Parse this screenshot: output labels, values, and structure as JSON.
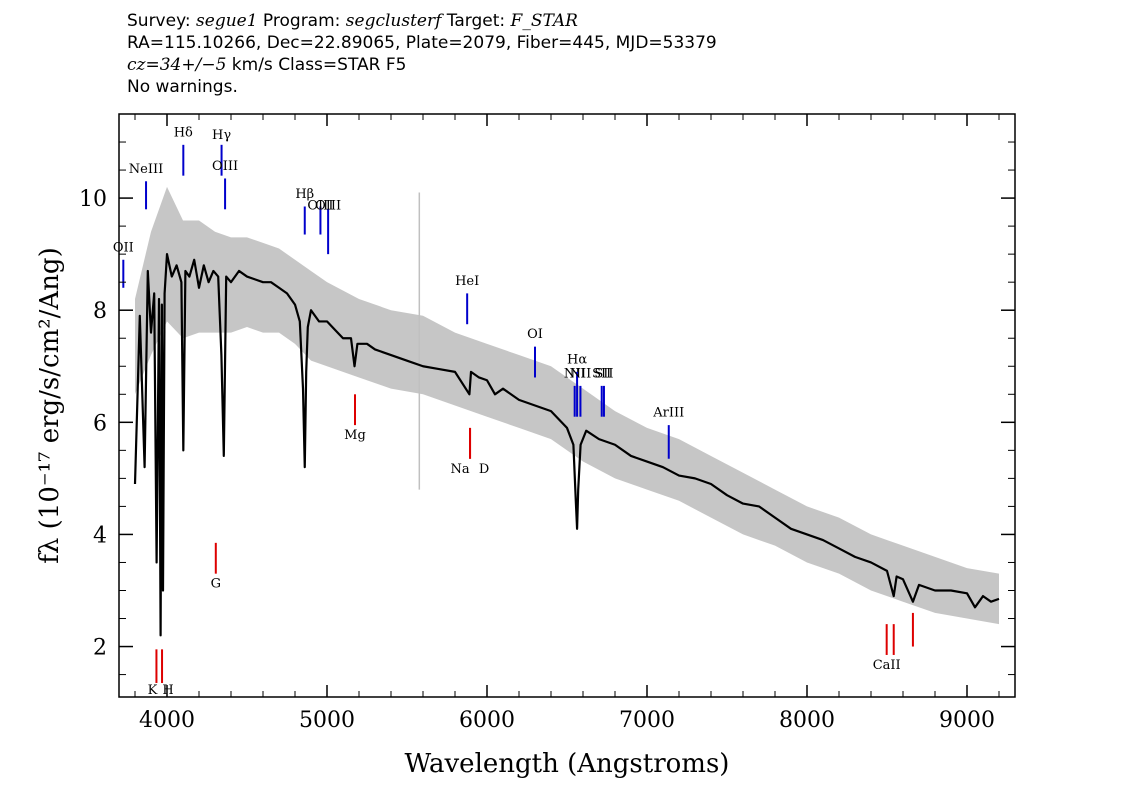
{
  "header": {
    "line1_prefix": "Survey: ",
    "survey": "segue1",
    "program_prefix": " Program: ",
    "program": "segclusterf",
    "target_prefix": " Target: ",
    "target": "F_STAR",
    "line2": "RA=115.10266, Dec=22.89065, Plate=2079, Fiber=445, MJD=53379",
    "line3_cz": "cz=34+/−5",
    "line3_rest": " km/s Class=STAR F5",
    "line4": "No warnings."
  },
  "chart_data": {
    "type": "line",
    "xlabel": "Wavelength (Angstroms)",
    "ylabel": "fλ (10⁻¹⁷ erg/s/cm²/Ang)",
    "xlim": [
      3700,
      9300
    ],
    "ylim": [
      1.1,
      11.5
    ],
    "xticks": [
      4000,
      5000,
      6000,
      7000,
      8000,
      9000
    ],
    "yticks": [
      2,
      4,
      6,
      8,
      10
    ],
    "series": [
      {
        "role": "flux",
        "color": "#000000",
        "x": [
          3800,
          3830,
          3860,
          3880,
          3900,
          3920,
          3935,
          3950,
          3960,
          3968,
          3975,
          3985,
          4000,
          4030,
          4060,
          4090,
          4102,
          4115,
          4140,
          4170,
          4200,
          4230,
          4260,
          4290,
          4320,
          4340,
          4355,
          4370,
          4400,
          4450,
          4500,
          4550,
          4600,
          4650,
          4700,
          4750,
          4800,
          4830,
          4850,
          4861,
          4870,
          4880,
          4900,
          4950,
          5000,
          5050,
          5100,
          5150,
          5172,
          5190,
          5250,
          5300,
          5400,
          5500,
          5600,
          5700,
          5800,
          5890,
          5900,
          5950,
          6000,
          6050,
          6100,
          6200,
          6300,
          6400,
          6500,
          6540,
          6555,
          6563,
          6570,
          6585,
          6620,
          6700,
          6800,
          6900,
          7000,
          7100,
          7200,
          7300,
          7400,
          7500,
          7600,
          7700,
          7800,
          7900,
          8000,
          8100,
          8200,
          8300,
          8400,
          8500,
          8542,
          8560,
          8600,
          8662,
          8700,
          8800,
          8900,
          9000,
          9050,
          9100,
          9150,
          9200
        ],
        "y": [
          4.9,
          7.9,
          5.2,
          8.7,
          7.6,
          8.3,
          3.5,
          8.2,
          2.2,
          8.1,
          3.0,
          8.3,
          9.0,
          8.6,
          8.8,
          8.5,
          5.5,
          8.7,
          8.6,
          8.9,
          8.4,
          8.8,
          8.5,
          8.7,
          8.6,
          7.2,
          5.4,
          8.6,
          8.5,
          8.7,
          8.6,
          8.55,
          8.5,
          8.5,
          8.4,
          8.3,
          8.1,
          7.8,
          6.6,
          5.2,
          6.9,
          7.7,
          8.0,
          7.8,
          7.8,
          7.65,
          7.5,
          7.5,
          7.0,
          7.4,
          7.4,
          7.3,
          7.2,
          7.1,
          7.0,
          6.95,
          6.9,
          6.5,
          6.9,
          6.8,
          6.75,
          6.5,
          6.6,
          6.4,
          6.3,
          6.2,
          5.9,
          5.6,
          4.6,
          4.1,
          4.8,
          5.6,
          5.85,
          5.7,
          5.6,
          5.4,
          5.3,
          5.2,
          5.05,
          5.0,
          4.9,
          4.7,
          4.55,
          4.5,
          4.3,
          4.1,
          4.0,
          3.9,
          3.75,
          3.6,
          3.5,
          3.35,
          2.9,
          3.25,
          3.2,
          2.8,
          3.1,
          3.0,
          3.0,
          2.95,
          2.7,
          2.9,
          2.8,
          2.85
        ]
      },
      {
        "role": "flux-envelope",
        "color": "#c0c0c0",
        "x": [
          3800,
          3900,
          4000,
          4100,
          4200,
          4300,
          4400,
          4500,
          4600,
          4700,
          4800,
          4900,
          5000,
          5200,
          5400,
          5600,
          5800,
          6000,
          6200,
          6400,
          6600,
          6800,
          7000,
          7200,
          7400,
          7600,
          7800,
          8000,
          8200,
          8400,
          8600,
          8800,
          9000,
          9200
        ],
        "upper": [
          8.2,
          9.4,
          10.2,
          9.6,
          9.6,
          9.4,
          9.3,
          9.3,
          9.2,
          9.1,
          8.9,
          8.7,
          8.5,
          8.2,
          8.0,
          7.9,
          7.6,
          7.4,
          7.2,
          7.0,
          6.6,
          6.2,
          5.9,
          5.7,
          5.4,
          5.1,
          4.8,
          4.5,
          4.3,
          4.0,
          3.8,
          3.6,
          3.4,
          3.3
        ],
        "lower": [
          6.5,
          7.2,
          7.8,
          7.5,
          7.6,
          7.6,
          7.6,
          7.7,
          7.6,
          7.6,
          7.4,
          7.1,
          7.0,
          6.8,
          6.6,
          6.5,
          6.3,
          6.1,
          5.9,
          5.7,
          5.3,
          5.0,
          4.8,
          4.6,
          4.3,
          4.0,
          3.8,
          3.5,
          3.3,
          3.0,
          2.8,
          2.6,
          2.5,
          2.4
        ]
      }
    ],
    "emission_lines": [
      {
        "label": "OII",
        "wavelength": 3727,
        "y0": 8.4,
        "y1": 8.9,
        "text_y": 9.05
      },
      {
        "label": "NeIII",
        "wavelength": 3869,
        "y0": 9.8,
        "y1": 10.3,
        "text_y": 10.45
      },
      {
        "label": "Hδ",
        "wavelength": 4102,
        "y0": 10.4,
        "y1": 10.95,
        "text_y": 11.1
      },
      {
        "label": "Hγ",
        "wavelength": 4341,
        "y0": 10.4,
        "y1": 10.95,
        "text_y": 11.05
      },
      {
        "label": "OIII",
        "wavelength": 4363,
        "y0": 9.8,
        "y1": 10.35,
        "text_y": 10.5
      },
      {
        "label": "Hβ",
        "wavelength": 4861,
        "y0": 9.35,
        "y1": 9.85,
        "text_y": 10.0
      },
      {
        "label": "OIII",
        "wavelength": 4959,
        "y0": 9.35,
        "y1": 9.85,
        "text_y": 9.8
      },
      {
        "label": "OIII",
        "wavelength": 5007,
        "y0": 9.0,
        "y1": 9.8,
        "text_y": 9.8
      },
      {
        "label": "HeI",
        "wavelength": 5876,
        "y0": 7.75,
        "y1": 8.3,
        "text_y": 8.45
      },
      {
        "label": "OI",
        "wavelength": 6300,
        "y0": 6.8,
        "y1": 7.35,
        "text_y": 7.5
      },
      {
        "label": "NII",
        "wavelength": 6548,
        "y0": 6.1,
        "y1": 6.65,
        "text_y": 6.8
      },
      {
        "label": "Hα",
        "wavelength": 6563,
        "y0": 6.1,
        "y1": 6.9,
        "text_y": 7.05
      },
      {
        "label": "NII",
        "wavelength": 6584,
        "y0": 6.1,
        "y1": 6.65,
        "text_y": 6.8
      },
      {
        "label": "SII",
        "wavelength": 6717,
        "y0": 6.1,
        "y1": 6.65,
        "text_y": 6.8
      },
      {
        "label": "SII",
        "wavelength": 6731,
        "y0": 6.1,
        "y1": 6.65,
        "text_y": 6.8
      }
    ],
    "emission_lines_2": [
      {
        "label": "ArIII",
        "wavelength": 7136,
        "y0": 5.35,
        "y1": 5.95,
        "text_y": 6.1
      }
    ],
    "absorption_lines": [
      {
        "label": "K",
        "wavelength": 3934,
        "y0": 1.35,
        "y1": 1.95,
        "text_y": 1.15
      },
      {
        "label": "H",
        "wavelength": 3969,
        "y0": 1.35,
        "y1": 1.95,
        "text_y": 1.15
      },
      {
        "label": "G",
        "wavelength": 4305,
        "y0": 3.3,
        "y1": 3.85,
        "text_y": 3.05
      },
      {
        "label": "Mg",
        "wavelength": 5175,
        "y0": 5.95,
        "y1": 6.5,
        "text_y": 5.7
      },
      {
        "label": "Na",
        "wavelength": 5894,
        "y0": 5.35,
        "y1": 5.9,
        "text_y": 5.1
      },
      {
        "label": "D",
        "wavelength": 5894,
        "y0": 5.35,
        "y1": 5.9,
        "text_y": 5.1
      },
      {
        "label": "CaII",
        "wavelength": 8498,
        "y0": 1.85,
        "y1": 2.4,
        "text_y": 1.6
      },
      {
        "label": "",
        "wavelength": 8542,
        "y0": 1.85,
        "y1": 2.4
      },
      {
        "label": "",
        "wavelength": 8662,
        "y0": 2.0,
        "y1": 2.6
      }
    ],
    "colors": {
      "emission": "#0000cc",
      "absorption": "#dd0000",
      "flux": "#000000",
      "error": "#c0c0c0"
    },
    "grid": false,
    "legend": "none"
  }
}
